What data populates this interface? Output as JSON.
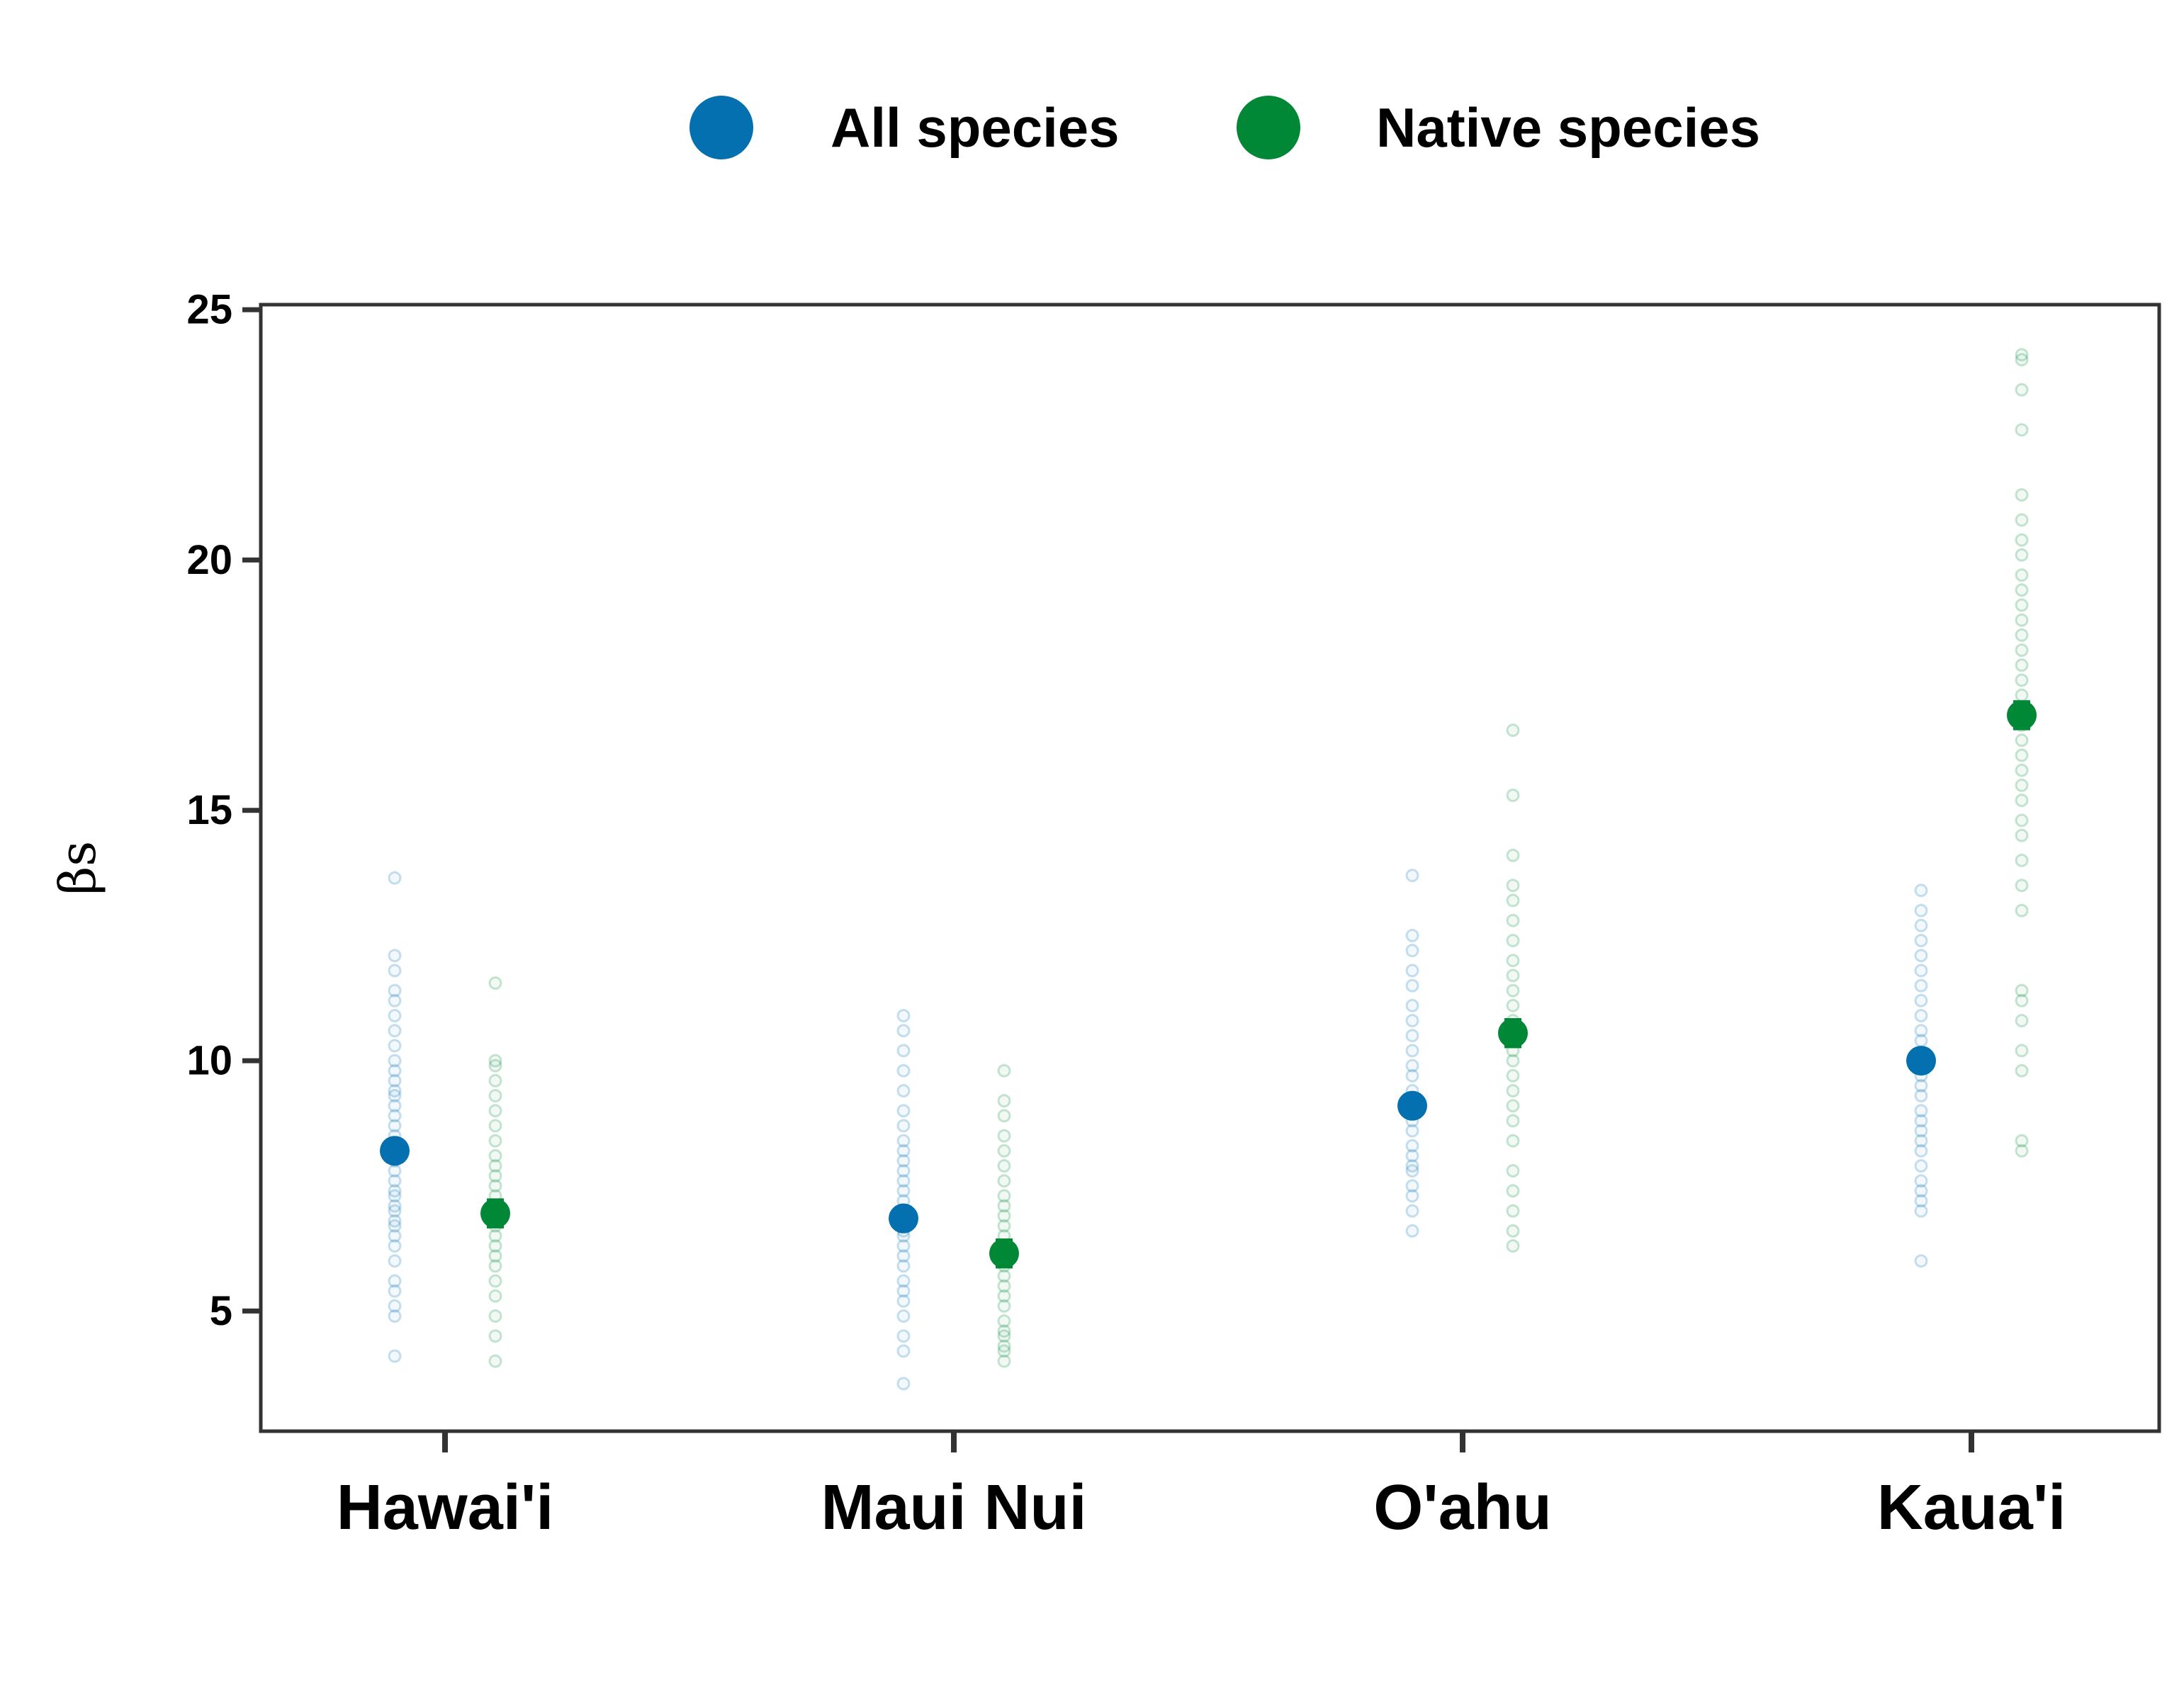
{
  "chart_data": {
    "type": "scatter",
    "title": "",
    "xlabel": "",
    "ylabel": "βs",
    "categories": [
      "Hawai'i",
      "Maui Nui",
      "O'ahu",
      "Kaua'i"
    ],
    "yticks": [
      5,
      10,
      15,
      20,
      25
    ],
    "ylim": [
      2.6,
      25.1
    ],
    "grid": false,
    "legend_position": "top-center",
    "series": [
      {
        "name": "All species",
        "color": "#0570b0",
        "means": [
          8.2,
          6.85,
          9.1,
          10.0
        ],
        "errors": [
          0.25,
          0.25,
          0.25,
          0.25
        ],
        "samples": [
          [
            4.1,
            4.9,
            5.1,
            5.4,
            5.6,
            6.0,
            6.3,
            6.5,
            6.7,
            6.8,
            7.0,
            7.1,
            7.3,
            7.4,
            7.6,
            7.8,
            8.0,
            8.1,
            8.3,
            8.5,
            8.7,
            8.9,
            9.1,
            9.3,
            9.4,
            9.6,
            9.8,
            10.0,
            10.3,
            10.6,
            10.9,
            11.2,
            11.4,
            11.8,
            12.1,
            13.65
          ],
          [
            3.55,
            4.2,
            4.5,
            4.9,
            5.2,
            5.4,
            5.6,
            5.9,
            6.1,
            6.3,
            6.5,
            6.6,
            6.8,
            7.0,
            7.2,
            7.4,
            7.6,
            7.8,
            8.0,
            8.2,
            8.4,
            8.7,
            9.0,
            9.4,
            9.8,
            10.2,
            10.6,
            10.9
          ],
          [
            6.6,
            7.0,
            7.3,
            7.5,
            7.8,
            7.9,
            8.1,
            8.3,
            8.6,
            8.8,
            9.0,
            9.2,
            9.4,
            9.7,
            9.9,
            10.2,
            10.5,
            10.8,
            11.1,
            11.5,
            11.8,
            12.2,
            12.5,
            13.7
          ],
          [
            6.0,
            7.0,
            7.2,
            7.4,
            7.6,
            7.9,
            8.2,
            8.4,
            8.6,
            8.8,
            9.0,
            9.3,
            9.5,
            9.7,
            9.9,
            10.1,
            10.4,
            10.6,
            10.9,
            11.2,
            11.5,
            11.8,
            12.1,
            12.4,
            12.7,
            13.0,
            13.4
          ]
        ]
      },
      {
        "name": "Native species",
        "color": "#008837",
        "means": [
          6.95,
          6.15,
          10.55,
          16.9
        ],
        "errors": [
          0.3,
          0.3,
          0.3,
          0.3
        ],
        "samples": [
          [
            4.0,
            4.5,
            4.9,
            5.3,
            5.6,
            5.9,
            6.1,
            6.3,
            6.5,
            6.7,
            6.9,
            7.1,
            7.3,
            7.5,
            7.7,
            7.9,
            8.1,
            8.4,
            8.7,
            9.0,
            9.3,
            9.6,
            9.9,
            10.0,
            11.55
          ],
          [
            4.0,
            4.2,
            4.3,
            4.5,
            4.6,
            4.8,
            5.1,
            5.3,
            5.5,
            5.7,
            5.9,
            6.1,
            6.3,
            6.5,
            6.7,
            6.9,
            7.1,
            7.3,
            7.6,
            7.9,
            8.2,
            8.5,
            8.9,
            9.2,
            9.8
          ],
          [
            6.3,
            6.6,
            7.0,
            7.4,
            7.8,
            8.4,
            8.8,
            9.1,
            9.4,
            9.7,
            10.0,
            10.2,
            10.5,
            10.8,
            11.1,
            11.4,
            11.7,
            12.0,
            12.4,
            12.8,
            13.2,
            13.5,
            14.1,
            15.3,
            16.6
          ],
          [
            8.2,
            8.4,
            9.8,
            10.2,
            10.8,
            11.2,
            11.4,
            13.0,
            13.5,
            14.0,
            14.5,
            14.8,
            15.2,
            15.5,
            15.8,
            16.1,
            16.4,
            16.7,
            17.0,
            17.3,
            17.6,
            17.9,
            18.2,
            18.5,
            18.8,
            19.1,
            19.4,
            19.7,
            20.1,
            20.4,
            20.8,
            21.3,
            22.6,
            23.4,
            24.0,
            24.1
          ]
        ]
      }
    ]
  }
}
